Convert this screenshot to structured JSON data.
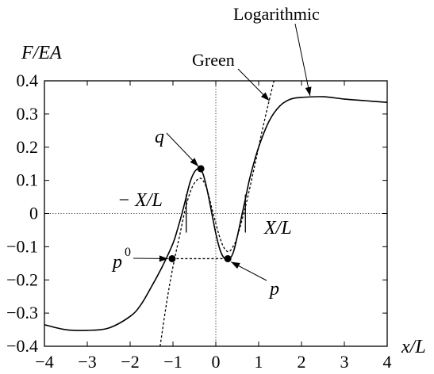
{
  "chart_data": {
    "type": "line",
    "title": "",
    "xlabel": "x/L",
    "ylabel": "F/EA",
    "xlim": [
      -4,
      4
    ],
    "ylim": [
      -0.4,
      0.4
    ],
    "grid": false,
    "zero_lines": true,
    "x_ticks": [
      -4,
      -3,
      -2,
      -1,
      0,
      1,
      2,
      3,
      4
    ],
    "x_tick_labels": [
      "−4",
      "−3",
      "−2",
      "−1",
      "0",
      "1",
      "2",
      "3",
      "4"
    ],
    "y_ticks": [
      -0.4,
      -0.3,
      -0.2,
      -0.1,
      0,
      0.1,
      0.2,
      0.3,
      0.4
    ],
    "y_tick_labels": [
      "−0.4",
      "−0.3",
      "−0.2",
      "−0.1",
      "0",
      "0.1",
      "0.2",
      "0.3",
      "0.4"
    ],
    "series": [
      {
        "name": "Logarithmic",
        "style": "solid",
        "x": [
          -4,
          -3.5,
          -3,
          -2.5,
          -2,
          -1.75,
          -1.5,
          -1.25,
          -1,
          -0.9,
          -0.8,
          -0.7,
          -0.6,
          -0.5,
          -0.4,
          -0.3,
          -0.2,
          -0.1,
          0,
          0.1,
          0.2,
          0.3,
          0.4,
          0.5,
          0.6,
          0.7,
          0.8,
          1,
          1.25,
          1.5,
          1.75,
          2,
          2.5,
          3,
          3.5,
          4
        ],
        "y": [
          -0.335,
          -0.35,
          -0.352,
          -0.345,
          -0.31,
          -0.275,
          -0.22,
          -0.16,
          -0.09,
          -0.05,
          -0.005,
          0.045,
          0.095,
          0.125,
          0.135,
          0.12,
          0.07,
          0.005,
          -0.06,
          -0.11,
          -0.135,
          -0.138,
          -0.12,
          -0.07,
          -0.01,
          0.05,
          0.11,
          0.2,
          0.28,
          0.325,
          0.345,
          0.35,
          0.352,
          0.345,
          0.34,
          0.335
        ]
      },
      {
        "name": "Green",
        "style": "dashed",
        "x": [
          -1.3,
          -1.15,
          -1,
          -0.85,
          -0.7,
          -0.55,
          -0.4,
          -0.3,
          -0.2,
          -0.1,
          0,
          0.1,
          0.2,
          0.3,
          0.4,
          0.5,
          0.7,
          0.9,
          1.1,
          1.3,
          1.4
        ],
        "y": [
          -0.4,
          -0.27,
          -0.16,
          -0.07,
          0.02,
          0.08,
          0.105,
          0.1,
          0.07,
          0.02,
          -0.03,
          -0.075,
          -0.105,
          -0.115,
          -0.1,
          -0.07,
          0.025,
          0.14,
          0.26,
          0.37,
          0.42
        ]
      }
    ],
    "points": [
      {
        "label": "q",
        "x": -0.35,
        "y": 0.135
      },
      {
        "label": "p0",
        "x": -1.02,
        "y": -0.136
      },
      {
        "label": "p",
        "x": 0.28,
        "y": -0.136
      }
    ],
    "maxwell_segment": {
      "x1": -1.02,
      "x2": 0.28,
      "y": -0.136
    },
    "vertical_markers": [
      -0.69,
      0.69
    ],
    "annotations": {
      "logarithmic": "Logarithmic",
      "green": "Green",
      "q": "q",
      "p0_base": "p",
      "p0_sup": "0",
      "p": "p",
      "minus_x_over_l": "− X/L",
      "x_over_l": "X/L"
    }
  }
}
